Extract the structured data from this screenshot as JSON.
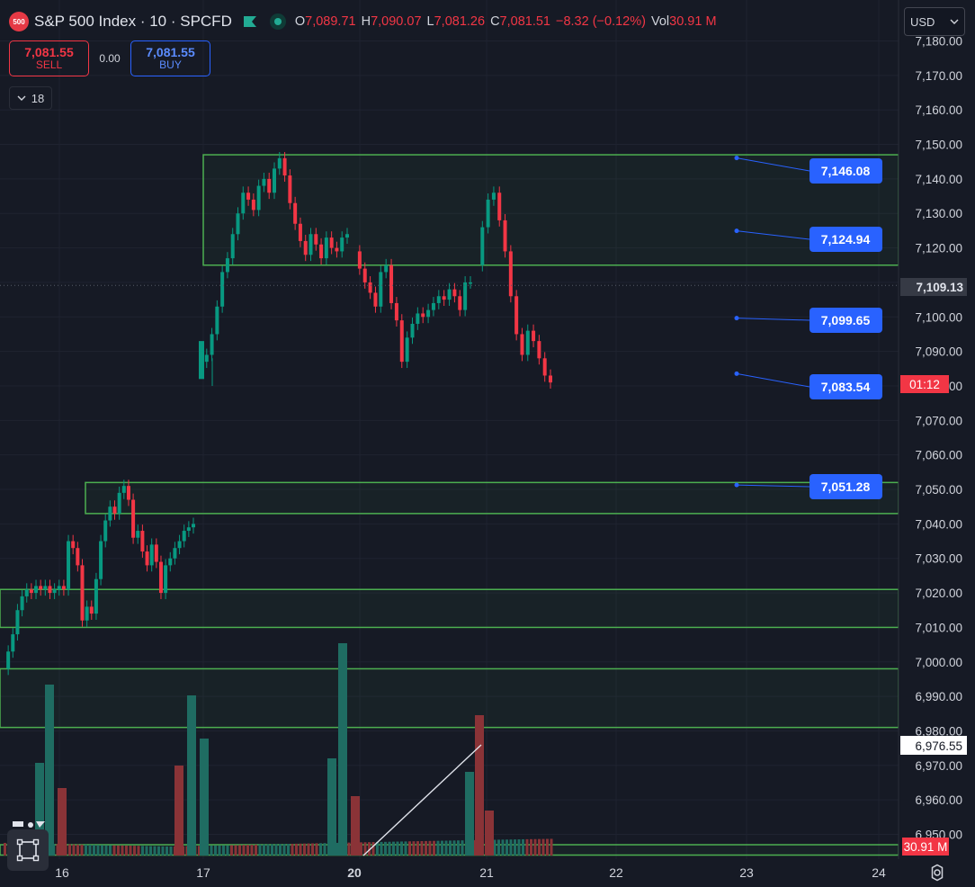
{
  "header": {
    "exchange_badge": "500",
    "title": "S&P 500 Index · 10 · SPCFD",
    "ohlc": [
      {
        "key": "O",
        "value": "7,089.71"
      },
      {
        "key": "H",
        "value": "7,090.07"
      },
      {
        "key": "L",
        "value": "7,081.26"
      },
      {
        "key": "C",
        "value": "7,081.51"
      }
    ],
    "change": "−8.32 (−0.12%)",
    "vol_label": "Vol",
    "vol_value": "30.91 M",
    "currency": "USD"
  },
  "trade": {
    "sell_price": "7,081.55",
    "sell_label": "SELL",
    "spread": "0.00",
    "buy_price": "7,081.55",
    "buy_label": "BUY"
  },
  "indicators_collapse": {
    "count": "18"
  },
  "chart_data": {
    "type": "candlestick",
    "symbol": "S&P 500 Index · 10 · SPCFD",
    "ylim": [
      6945,
      7182
    ],
    "y_ticks": [
      "7,180.00",
      "7,170.00",
      "7,160.00",
      "7,150.00",
      "7,140.00",
      "7,130.00",
      "7,120.00",
      "7,110.00",
      "7,100.00",
      "7,090.00",
      "7,080.00",
      "7,070.00",
      "7,060.00",
      "7,050.00",
      "7,040.00",
      "7,030.00",
      "7,020.00",
      "7,010.00",
      "7,000.00",
      "6,990.00",
      "6,980.00",
      "6,970.00",
      "6,960.00",
      "6,950.00"
    ],
    "x_ticks": [
      "16",
      "17",
      "20",
      "21",
      "22",
      "23",
      "24"
    ],
    "price_labels": {
      "crosshair": "7,109.13",
      "last_price_countdown": "01:12",
      "level_label": "6,976.55",
      "volume": "30.91 M"
    },
    "annotations": [
      "7,146.08",
      "7,124.94",
      "7,099.65",
      "7,083.54",
      "7,051.28"
    ],
    "zones": [
      {
        "from": "17",
        "top": 7147,
        "bottom": 7115
      },
      {
        "from": "16",
        "top": 7052,
        "bottom": 7043
      },
      {
        "from": "start",
        "top": 7021,
        "bottom": 7010
      },
      {
        "from": "start",
        "top": 6998,
        "bottom": 6981
      },
      {
        "from": "start",
        "top": 6947,
        "bottom": 6944
      }
    ],
    "price_series": [
      {
        "session": "16",
        "points": [
          6998,
          7003,
          7008,
          7015,
          7019,
          7021,
          7020,
          7022,
          7021,
          7022,
          7020,
          7021,
          7022,
          7021,
          7035,
          7033,
          7028,
          7012,
          7016,
          7014,
          7024,
          7035,
          7041,
          7045,
          7043,
          7049,
          7051,
          7047,
          7036,
          7038,
          7032,
          7028,
          7034,
          7029,
          7020,
          7028,
          7030,
          7033,
          7035,
          7038,
          7039,
          7040
        ]
      },
      {
        "session": "17",
        "points": [
          7087,
          7089,
          7095,
          7103,
          7113,
          7117,
          7124,
          7130,
          7136,
          7134,
          7131,
          7138,
          7140,
          7136,
          7143,
          7146,
          7141,
          7133,
          7127,
          7122,
          7118,
          7124,
          7121,
          7117,
          7123,
          7120,
          7119,
          7123,
          7124
        ]
      },
      {
        "session": "20",
        "points": [
          7119,
          7114,
          7110,
          7107,
          7103,
          7113,
          7115,
          7104,
          7099,
          7087,
          7094,
          7098,
          7101,
          7100,
          7102,
          7104,
          7106,
          7105,
          7108,
          7106,
          7102,
          7110,
          7110
        ]
      },
      {
        "session": "21",
        "points": [
          7115,
          7126,
          7134,
          7136,
          7128,
          7119,
          7106,
          7095,
          7089,
          7096,
          7093,
          7088,
          7083,
          7081
        ]
      }
    ],
    "volume_note": "volume bars in data units are not printed; pane shows relative bar heights"
  }
}
